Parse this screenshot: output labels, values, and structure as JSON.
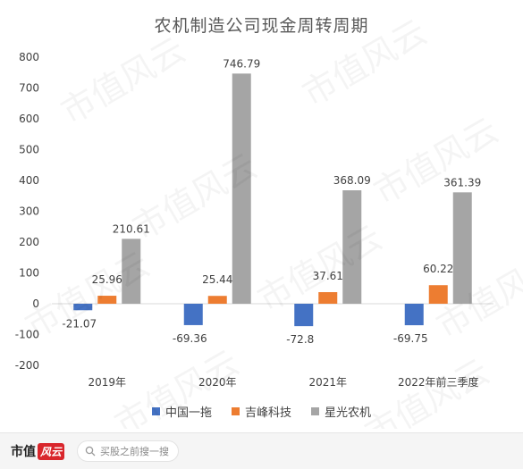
{
  "chart_data": {
    "type": "bar",
    "title": "农机制造公司现金周转周期",
    "categories": [
      "2019年",
      "2020年",
      "2021年",
      "2022年前三季度"
    ],
    "series": [
      {
        "name": "中国一拖",
        "color": "#4472c4",
        "values": [
          -21.07,
          -69.36,
          -72.8,
          -69.75
        ]
      },
      {
        "name": "吉峰科技",
        "color": "#ed7d31",
        "values": [
          25.96,
          25.44,
          37.61,
          60.22
        ]
      },
      {
        "name": "星光农机",
        "color": "#a5a5a5",
        "values": [
          210.61,
          746.79,
          368.09,
          361.39
        ]
      }
    ],
    "labels": [
      [
        "-21.07",
        "-69.36",
        "-72.8",
        "-69.75"
      ],
      [
        "25.96",
        "25.44",
        "37.61",
        "60.22"
      ],
      [
        "210.61",
        "746.79",
        "368.09",
        "361.39"
      ]
    ],
    "ylim": [
      -200,
      800
    ],
    "yticks": [
      "-200",
      "-100",
      "0",
      "100",
      "200",
      "300",
      "400",
      "500",
      "600",
      "700",
      "800"
    ],
    "xlabel": "",
    "ylabel": "",
    "grid": false,
    "legend": "bottom"
  },
  "watermark": "市值风云",
  "footer": {
    "brand_text": "市值",
    "brand_mark": "风云",
    "search_placeholder": "买股之前搜一搜"
  }
}
